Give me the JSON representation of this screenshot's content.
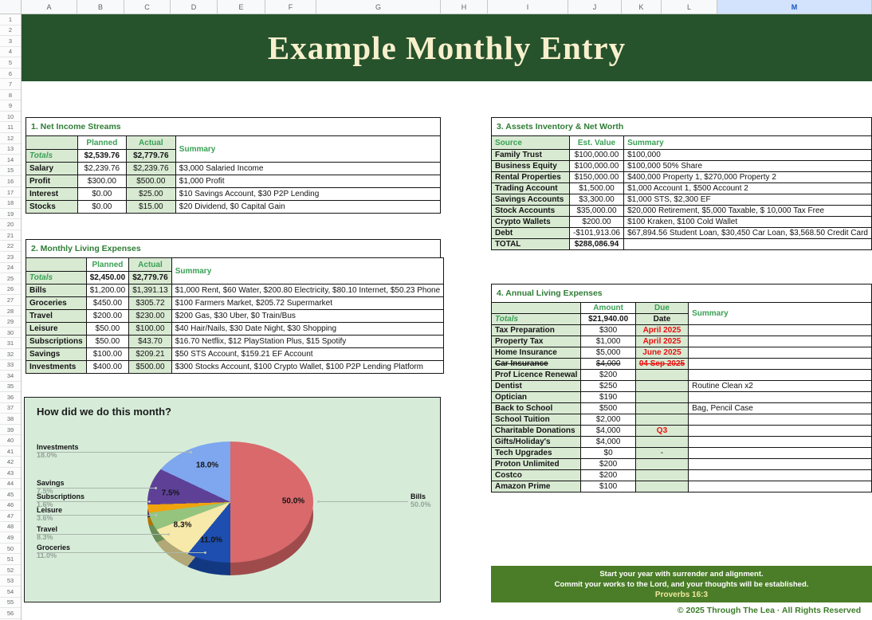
{
  "app": {
    "columns": [
      "A",
      "B",
      "C",
      "D",
      "E",
      "F",
      "G",
      "H",
      "I",
      "J",
      "K",
      "L",
      "M"
    ],
    "selected_column": "M",
    "row_count": 56
  },
  "banner": {
    "title": "Example Monthly Entry"
  },
  "tables": {
    "net_income": {
      "title": "1. Net Income Streams",
      "headers": [
        "",
        "Planned",
        "Actual",
        "Summary"
      ],
      "totals": {
        "label": "Totals",
        "planned": "$2,539.76",
        "actual": "$2,779.76"
      },
      "rows": [
        {
          "label": "Salary",
          "planned": "$2,239.76",
          "actual": "$2,239.76",
          "summary": "$3,000 Salaried Income"
        },
        {
          "label": "Profit",
          "planned": "$300.00",
          "actual": "$500.00",
          "summary": "$1,000 Profit"
        },
        {
          "label": "Interest",
          "planned": "$0.00",
          "actual": "$25.00",
          "summary": "$10 Savings Account, $30 P2P Lending"
        },
        {
          "label": "Stocks",
          "planned": "$0.00",
          "actual": "$15.00",
          "summary": "$20 Dividend, $0 Capital Gain"
        }
      ]
    },
    "monthly_expenses": {
      "title": "2. Monthly Living Expenses",
      "headers": [
        "",
        "Planned",
        "Actual",
        "Summary"
      ],
      "totals": {
        "label": "Totals",
        "planned": "$2,450.00",
        "actual": "$2,779.76"
      },
      "rows": [
        {
          "label": "Bills",
          "planned": "$1,200.00",
          "actual": "$1,391.13",
          "summary": "$1,000 Rent, $60 Water, $200.80 Electricity, $80.10 Internet, $50.23 Phone"
        },
        {
          "label": "Groceries",
          "planned": "$450.00",
          "actual": "$305.72",
          "summary": "$100 Farmers Market, $205.72 Supermarket"
        },
        {
          "label": "Travel",
          "planned": "$200.00",
          "actual": "$230.00",
          "summary": "$200 Gas, $30 Uber, $0 Train/Bus"
        },
        {
          "label": "Leisure",
          "planned": "$50.00",
          "actual": "$100.00",
          "summary": "$40 Hair/Nails, $30 Date Night, $30 Shopping"
        },
        {
          "label": "Subscriptions",
          "planned": "$50.00",
          "actual": "$43.70",
          "summary": "$16.70 Netflix, $12 PlayStation Plus, $15 Spotify"
        },
        {
          "label": "Savings",
          "planned": "$100.00",
          "actual": "$209.21",
          "summary": "$50 STS Account, $159.21 EF Account"
        },
        {
          "label": "Investments",
          "planned": "$400.00",
          "actual": "$500.00",
          "summary": "$300 Stocks Account, $100 Crypto Wallet, $100 P2P Lending Platform"
        }
      ]
    },
    "assets": {
      "title": "3. Assets Inventory & Net Worth",
      "headers": [
        "Source",
        "Est. Value",
        "Summary"
      ],
      "rows": [
        {
          "label": "Family Trust",
          "value": "$100,000.00",
          "summary": "$100,000"
        },
        {
          "label": "Business Equity",
          "value": "$100,000.00",
          "summary": "$100,000 50% Share"
        },
        {
          "label": "Rental Properties",
          "value": "$150,000.00",
          "summary": "$400,000 Property 1, $270,000 Property 2"
        },
        {
          "label": "Trading Account",
          "value": "$1,500.00",
          "summary": "$1,000 Account 1, $500 Account 2"
        },
        {
          "label": "Savings Accounts",
          "value": "$3,300.00",
          "summary": "$1,000 STS, $2,300 EF"
        },
        {
          "label": "Stock Accounts",
          "value": "$35,000.00",
          "summary": "$20,000 Retirement, $5,000 Taxable, $ 10,000 Tax Free"
        },
        {
          "label": "Crypto Wallets",
          "value": "$200.00",
          "summary": "$100 Kraken, $100 Cold Wallet"
        },
        {
          "label": "Debt",
          "value": "-$101,913.06",
          "summary": "$67,894.56 Student Loan, $30,450 Car Loan, $3,568.50 Credit Card"
        }
      ],
      "total": {
        "label": "TOTAL",
        "value": "$288,086.94"
      }
    },
    "annual_expenses": {
      "title": "4. Annual Living Expenses",
      "headers": [
        "",
        "Amount",
        "Due",
        "Summary"
      ],
      "totals": {
        "label": "Totals",
        "amount": "$21,940.00",
        "due_date_label": "Date"
      },
      "rows": [
        {
          "label": "Tax Preparation",
          "amount": "$300",
          "due": {
            "t": "April 2025",
            "cls": "red"
          },
          "summary": ""
        },
        {
          "label": "Property Tax",
          "amount": "$1,000",
          "due": {
            "t": "April 2025",
            "cls": "red"
          },
          "summary": ""
        },
        {
          "label": "Home Insurance",
          "amount": "$5,000",
          "due": {
            "t": "June 2025",
            "cls": "red"
          },
          "summary": ""
        },
        {
          "cls": "struck",
          "label": "Car Insurance",
          "amount": "$4,000",
          "due": {
            "t": "04 Sep 2025",
            "cls": "red"
          },
          "summary": ""
        },
        {
          "label": "Prof Licence Renewal",
          "amount": "$200",
          "due": "",
          "summary": ""
        },
        {
          "label": "Dentist",
          "amount": "$250",
          "due": "",
          "summary": "Routine Clean x2"
        },
        {
          "label": "Optician",
          "amount": "$190",
          "due": "",
          "summary": ""
        },
        {
          "label": "Back to School",
          "amount": "$500",
          "due": "",
          "summary": "Bag, Pencil Case"
        },
        {
          "label": "School Tuition",
          "amount": "$2,000",
          "due": "",
          "summary": ""
        },
        {
          "label": "Charitable Donations",
          "amount": "$4,000",
          "due": {
            "t": "Q3",
            "cls": "red"
          },
          "summary": ""
        },
        {
          "label": "Gifts/Holiday's",
          "amount": "$4,000",
          "due": "",
          "summary": ""
        },
        {
          "label": "Tech Upgrades",
          "amount": "$0",
          "due": "-",
          "summary": ""
        },
        {
          "label": "Proton Unlimited",
          "amount": "$200",
          "due": "",
          "summary": ""
        },
        {
          "label": "Costco",
          "amount": "$200",
          "due": "",
          "summary": ""
        },
        {
          "label": "Amazon Prime",
          "amount": "$100",
          "due": "",
          "summary": ""
        }
      ]
    }
  },
  "chart_data": {
    "type": "pie",
    "title": "How did we do this month?",
    "legend_position": "labeled-callouts",
    "slices": [
      {
        "label": "Bills",
        "pct": 50.0,
        "pct_label": "50.0%",
        "color": "#d9696b"
      },
      {
        "label": "Groceries",
        "pct": 11.0,
        "pct_label": "11.0%",
        "color": "#1d4eb0"
      },
      {
        "label": "Travel",
        "pct": 8.3,
        "pct_label": "8.3%",
        "color": "#f7e9a9"
      },
      {
        "label": "Leisure",
        "pct": 3.6,
        "pct_label": "3.6%",
        "color": "#94c47e"
      },
      {
        "label": "Subscriptions",
        "pct": 1.6,
        "pct_label": "1.6%",
        "color": "#f0a30c"
      },
      {
        "label": "Savings",
        "pct": 7.5,
        "pct_label": "7.5%",
        "color": "#5e4197"
      },
      {
        "label": "Investments",
        "pct": 18.0,
        "pct_label": "18.0%",
        "color": "#7ea7ef"
      }
    ]
  },
  "footer": {
    "line1": "Start your year with surrender and alignment.",
    "line2": "Commit your works to the Lord, and your thoughts will be established.",
    "ref": "Proverbs 16:3",
    "copyright": "© 2025 Through The Lea · All Rights Reserved"
  },
  "colors": {
    "banner_green": "#26522c",
    "section_title_green": "#2f7d36",
    "header_green": "#3aa055",
    "cell_green_bg": "#d9ead3",
    "alert_red": "#ea1010",
    "footer_green": "#4b7d28",
    "chart_bg": "#d6ecd9",
    "selected_column_blue": "#d3e3fd"
  }
}
